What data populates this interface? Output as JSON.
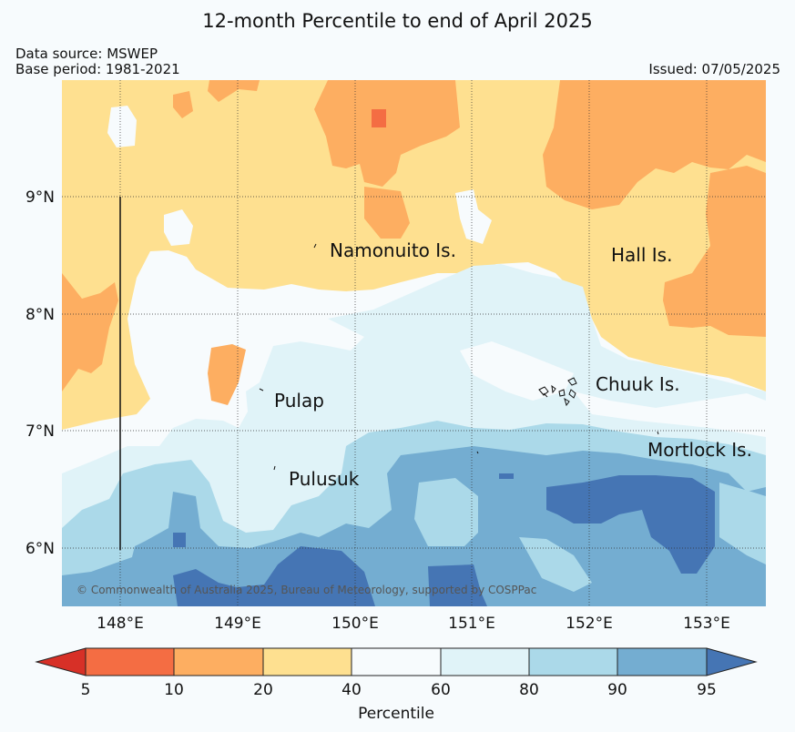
{
  "header": {
    "title": "12-month Percentile to end of April 2025",
    "data_source": "Data source: MSWEP",
    "base_period": "Base period: 1981-2021",
    "issued": "Issued: 07/05/2025"
  },
  "map": {
    "lon_ticks": [
      "148°E",
      "149°E",
      "150°E",
      "151°E",
      "152°E",
      "153°E"
    ],
    "lat_ticks": [
      "9°N",
      "8°N",
      "7°N",
      "6°N"
    ],
    "places": [
      "Namonuito Is.",
      "Hall Is.",
      "Pulap",
      "Chuuk Is.",
      "Pulusuk",
      "Mortlock Is."
    ],
    "copyright": "© Commonwealth of Australia 2025, Bureau of Meteorology, supported by COSPPac"
  },
  "colorbar": {
    "label": "Percentile",
    "ticks": [
      "5",
      "10",
      "20",
      "40",
      "60",
      "80",
      "90",
      "95"
    ],
    "colors": {
      "below5": "#d73027",
      "p5_10": "#f46d43",
      "p10_20": "#fdae61",
      "p20_40": "#fee090",
      "p40_60": "#f7fbfd",
      "p60_80": "#e0f3f8",
      "p80_90": "#abd9e9",
      "p90_95": "#74add1",
      "above95": "#4575b4"
    }
  }
}
